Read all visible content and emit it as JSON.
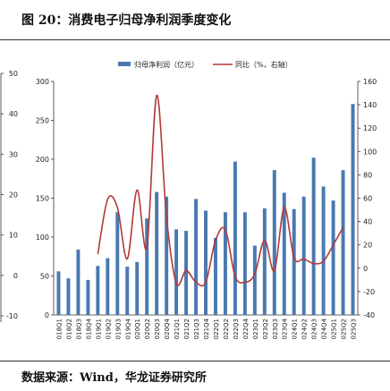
{
  "figure": {
    "title": "图 20：消费电子归母净利润季度变化",
    "source": "数据来源：Wind，华龙证券研究所"
  },
  "chart_data": {
    "type": "bar",
    "categories": [
      "2018Q1",
      "2018Q2",
      "2018Q3",
      "2018Q4",
      "2019Q1",
      "2019Q2",
      "2019Q3",
      "2019Q4",
      "2020Q1",
      "2020Q2",
      "2020Q3",
      "2020Q4",
      "2021Q1",
      "2021Q2",
      "2021Q3",
      "2021Q4",
      "2022Q1",
      "2022Q2",
      "2022Q3",
      "2022Q4",
      "2023Q1",
      "2023Q2",
      "2023Q3",
      "2023Q4",
      "2024Q1",
      "2024Q2",
      "2024Q3",
      "2024Q4",
      "2025Q1",
      "2025Q2",
      "2025Q3"
    ],
    "series": [
      {
        "name": "归母净利润（亿元）",
        "type": "bar",
        "axis": "left",
        "color": "#4a79b0",
        "values": [
          56,
          47,
          84,
          45,
          63,
          73,
          132,
          62,
          68,
          124,
          158,
          152,
          110,
          108,
          149,
          134,
          99,
          132,
          197,
          132,
          89,
          137,
          186,
          157,
          136,
          152,
          202,
          165,
          147,
          186,
          271
        ]
      },
      {
        "name": "同比（%，右轴）",
        "type": "line",
        "axis": "right",
        "color": "#b23a3a",
        "values": [
          null,
          null,
          null,
          null,
          12,
          59,
          52,
          8,
          67,
          18,
          148,
          44,
          -13,
          -2,
          -12,
          -12,
          24,
          33,
          -7,
          -12,
          -5,
          24,
          -2,
          52,
          9,
          8,
          4,
          6,
          20,
          35,
          null
        ]
      }
    ],
    "left_axis": {
      "min": 0,
      "max": 300,
      "ticks": [
        0,
        50,
        100,
        150,
        200,
        250,
        300
      ]
    },
    "right_axis": {
      "min": -40,
      "max": 160,
      "ticks": [
        -40,
        -20,
        0,
        20,
        40,
        60,
        80,
        100,
        120,
        140,
        160
      ]
    },
    "far_left_axis": {
      "ticks": [
        "-10",
        "0",
        "10",
        "20",
        "30",
        "40",
        "50"
      ]
    },
    "legend_position": "top-center",
    "grid": false
  }
}
